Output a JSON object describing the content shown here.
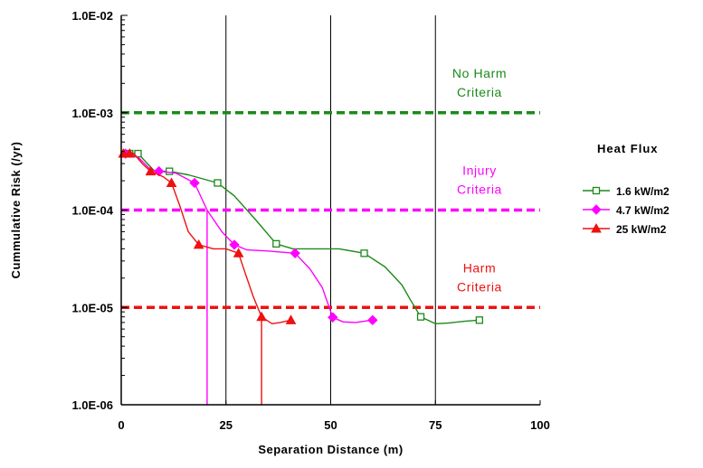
{
  "chart_data": {
    "type": "line",
    "xlabel": "Separation Distance (m)",
    "ylabel": "Cummulative Risk (/yr)",
    "xlim": [
      0,
      100
    ],
    "ylim": [
      1e-06,
      0.01
    ],
    "y_scale": "log",
    "x_ticks": [
      "0",
      "25",
      "50",
      "75",
      "100"
    ],
    "y_ticks": [
      "1.0E-06",
      "1.0E-05",
      "1.0E-04",
      "1.0E-03",
      "1.0E-02"
    ],
    "vertical_gridlines_at": [
      25,
      50,
      75
    ],
    "legend": {
      "title": "Heat Flux",
      "position": "right"
    },
    "criteria": [
      {
        "label_line1": "No Harm",
        "label_line2": "Criteria",
        "value": 0.001,
        "color": "#1a8a1a"
      },
      {
        "label_line1": "Injury",
        "label_line2": "Criteria",
        "value": 0.0001,
        "color": "#ff00ff"
      },
      {
        "label_line1": "Harm",
        "label_line2": "Criteria",
        "value": 1e-05,
        "color": "#ee1111"
      }
    ],
    "series": [
      {
        "name": "1.6 kW/m2",
        "color": "#1a8a1a",
        "marker": "square",
        "points": [
          [
            0,
            0.00038
          ],
          [
            2,
            0.00038
          ],
          [
            4,
            0.00038
          ],
          [
            8,
            0.00025
          ],
          [
            11.5,
            0.00025
          ],
          [
            16,
            0.00023
          ],
          [
            23,
            0.00019
          ],
          [
            27,
            0.00014
          ],
          [
            32,
            8e-05
          ],
          [
            37,
            4.5e-05
          ],
          [
            41,
            4e-05
          ],
          [
            47,
            4e-05
          ],
          [
            52,
            4e-05
          ],
          [
            58,
            3.6e-05
          ],
          [
            63,
            2.6e-05
          ],
          [
            67,
            1.7e-05
          ],
          [
            69,
            1.2e-05
          ],
          [
            71.5,
            8e-06
          ],
          [
            75,
            6.8e-06
          ],
          [
            78,
            6.9e-06
          ],
          [
            82,
            7.2e-06
          ],
          [
            85.5,
            7.4e-06
          ]
        ],
        "markers": [
          [
            2,
            0.00038
          ],
          [
            4,
            0.00038
          ],
          [
            11.5,
            0.00025
          ],
          [
            23,
            0.00019
          ],
          [
            37,
            4.5e-05
          ],
          [
            58,
            3.6e-05
          ],
          [
            71.5,
            8e-06
          ],
          [
            85.5,
            7.4e-06
          ]
        ]
      },
      {
        "name": "4.7 kW/m2",
        "color": "#ff00ff",
        "marker": "diamond",
        "points": [
          [
            0,
            0.00038
          ],
          [
            2,
            0.00038
          ],
          [
            4,
            0.00035
          ],
          [
            7,
            0.00026
          ],
          [
            9,
            0.00025
          ],
          [
            13,
            0.00024
          ],
          [
            17.5,
            0.00019
          ],
          [
            20.5,
            0.0001
          ],
          [
            20.5,
            1e-06
          ],
          [
            20.5,
            0.0001
          ],
          [
            24,
            6e-05
          ],
          [
            27,
            4.4e-05
          ],
          [
            30,
            3.9e-05
          ],
          [
            35,
            3.8e-05
          ],
          [
            41.5,
            3.6e-05
          ],
          [
            45,
            2.5e-05
          ],
          [
            48,
            1.6e-05
          ],
          [
            50.5,
            7.9e-06
          ],
          [
            53,
            7.1e-06
          ],
          [
            56,
            7e-06
          ],
          [
            58,
            7.2e-06
          ],
          [
            60,
            7.4e-06
          ]
        ],
        "markers": [
          [
            1,
            0.00038
          ],
          [
            9,
            0.00025
          ],
          [
            17.5,
            0.00019
          ],
          [
            27,
            4.4e-05
          ],
          [
            41.5,
            3.6e-05
          ],
          [
            50.5,
            7.9e-06
          ],
          [
            60,
            7.4e-06
          ]
        ]
      },
      {
        "name": "25 kW/m2",
        "color": "#ee1111",
        "marker": "triangle",
        "points": [
          [
            0,
            0.00038
          ],
          [
            3,
            0.00038
          ],
          [
            5,
            0.0003
          ],
          [
            7,
            0.00025
          ],
          [
            10,
            0.00022
          ],
          [
            12,
            0.00019
          ],
          [
            14,
            0.00011
          ],
          [
            16,
            6e-05
          ],
          [
            18.5,
            4.4e-05
          ],
          [
            22,
            4e-05
          ],
          [
            25,
            4e-05
          ],
          [
            28,
            3.6e-05
          ],
          [
            30,
            2e-05
          ],
          [
            31.5,
            1.3e-05
          ],
          [
            33.5,
            8e-06
          ],
          [
            33.5,
            1e-06
          ],
          [
            33.5,
            8e-06
          ],
          [
            36,
            6.8e-06
          ],
          [
            38,
            7e-06
          ],
          [
            40.5,
            7.4e-06
          ]
        ],
        "markers": [
          [
            0.5,
            0.00038
          ],
          [
            2,
            0.00038
          ],
          [
            7,
            0.00025
          ],
          [
            12,
            0.00019
          ],
          [
            18.5,
            4.4e-05
          ],
          [
            28,
            3.6e-05
          ],
          [
            33.5,
            8e-06
          ],
          [
            40.5,
            7.4e-06
          ]
        ]
      }
    ]
  }
}
